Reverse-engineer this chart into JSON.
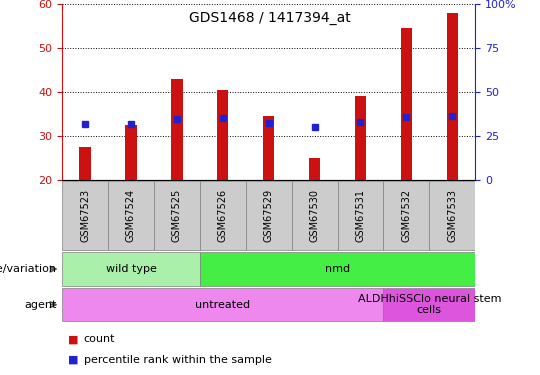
{
  "title": "GDS1468 / 1417394_at",
  "samples": [
    "GSM67523",
    "GSM67524",
    "GSM67525",
    "GSM67526",
    "GSM67529",
    "GSM67530",
    "GSM67531",
    "GSM67532",
    "GSM67533"
  ],
  "count_values": [
    27.5,
    32.5,
    43.0,
    40.5,
    34.5,
    25.0,
    39.0,
    54.5,
    58.0
  ],
  "percentile_values": [
    31.5,
    32.0,
    34.5,
    35.0,
    32.5,
    30.0,
    33.0,
    36.0,
    36.5
  ],
  "ylim_left": [
    20,
    60
  ],
  "ylim_right": [
    0,
    100
  ],
  "yticks_left": [
    20,
    30,
    40,
    50,
    60
  ],
  "yticks_right": [
    0,
    25,
    50,
    75,
    100
  ],
  "bar_color": "#cc1111",
  "dot_color": "#2222cc",
  "bar_width": 0.25,
  "genotype_groups": [
    {
      "label": "wild type",
      "start": 0,
      "end": 3,
      "color": "#aaf0aa"
    },
    {
      "label": "nmd",
      "start": 3,
      "end": 9,
      "color": "#44ee44"
    }
  ],
  "agent_groups": [
    {
      "label": "untreated",
      "start": 0,
      "end": 7,
      "color": "#ee88ee"
    },
    {
      "label": "ALDHhiSSClo neural stem\ncells",
      "start": 7,
      "end": 9,
      "color": "#dd55dd"
    }
  ],
  "genotype_label": "genotype/variation",
  "agent_label": "agent",
  "legend_count": "count",
  "legend_percentile": "percentile rank within the sample",
  "sample_bg_color": "#cccccc",
  "plot_bg_color": "#ffffff"
}
